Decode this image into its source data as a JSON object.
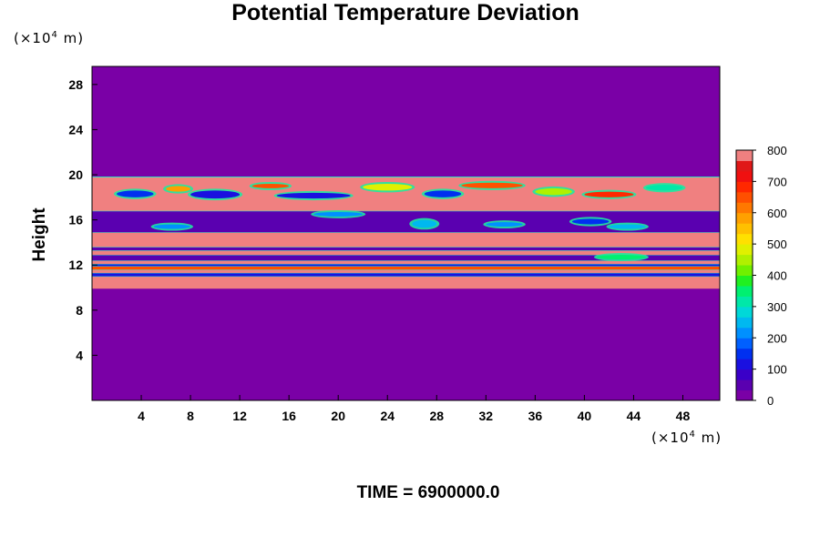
{
  "chart_data": {
    "type": "heatmap",
    "title": "Potential Temperature Deviation",
    "ylabel": "Height",
    "xunit": "(×10⁴ m)",
    "yunit": "(×10⁴ m)",
    "unit_prefix": "(×10",
    "unit_exp": "4",
    "unit_suffix": " m)",
    "x_ticks": [
      4,
      8,
      12,
      16,
      20,
      24,
      28,
      32,
      36,
      40,
      44,
      48
    ],
    "y_ticks": [
      4,
      8,
      12,
      16,
      20,
      24,
      28
    ],
    "xlim": [
      0,
      51
    ],
    "ylim": [
      0,
      29.6
    ],
    "clim": [
      0,
      800
    ],
    "colorbar_ticks": [
      0,
      100,
      200,
      300,
      400,
      500,
      600,
      700,
      800
    ],
    "colorbar_colors": [
      "#7a00a6",
      "#5a00b0",
      "#3a00c8",
      "#1a10e0",
      "#0030f0",
      "#0060ff",
      "#0090ff",
      "#00b8f0",
      "#00d8d8",
      "#00e8a8",
      "#00f070",
      "#20f020",
      "#70f000",
      "#b0f000",
      "#e0f000",
      "#ffe000",
      "#ffc000",
      "#ffa000",
      "#ff7800",
      "#ff5000",
      "#ff2800",
      "#f01010",
      "#e01818",
      "#f08080"
    ],
    "background_value": 0,
    "layers": [
      {
        "y0": 9.9,
        "y1": 11.0,
        "value": 800
      },
      {
        "y0": 11.0,
        "y1": 11.3,
        "value": 100
      },
      {
        "y0": 11.3,
        "y1": 11.6,
        "value": 800
      },
      {
        "y0": 11.6,
        "y1": 11.9,
        "value": 650
      },
      {
        "y0": 11.9,
        "y1": 12.1,
        "value": 100
      },
      {
        "y0": 12.1,
        "y1": 12.4,
        "value": 800
      },
      {
        "y0": 12.4,
        "y1": 12.9,
        "value": 50
      },
      {
        "y0": 12.9,
        "y1": 13.3,
        "value": 800
      },
      {
        "y0": 13.3,
        "y1": 13.6,
        "value": 50
      },
      {
        "y0": 13.6,
        "y1": 14.9,
        "value": 800
      },
      {
        "y0": 14.9,
        "y1": 16.8,
        "value": 50
      },
      {
        "y0": 16.8,
        "y1": 19.8,
        "value": 800
      }
    ],
    "patches": [
      {
        "x": 2,
        "y": 18.0,
        "w": 3,
        "h": 0.6,
        "value": 150
      },
      {
        "x": 6,
        "y": 18.5,
        "w": 2,
        "h": 0.5,
        "value": 600
      },
      {
        "x": 8,
        "y": 17.9,
        "w": 4,
        "h": 0.7,
        "value": 100
      },
      {
        "x": 13,
        "y": 18.8,
        "w": 3,
        "h": 0.4,
        "value": 650
      },
      {
        "x": 15,
        "y": 17.9,
        "w": 6,
        "h": 0.5,
        "value": 100
      },
      {
        "x": 22,
        "y": 18.6,
        "w": 4,
        "h": 0.6,
        "value": 500
      },
      {
        "x": 27,
        "y": 18.0,
        "w": 3,
        "h": 0.6,
        "value": 150
      },
      {
        "x": 30,
        "y": 18.8,
        "w": 5,
        "h": 0.5,
        "value": 650
      },
      {
        "x": 36,
        "y": 18.2,
        "w": 3,
        "h": 0.6,
        "value": 450
      },
      {
        "x": 40,
        "y": 18.0,
        "w": 4,
        "h": 0.5,
        "value": 700
      },
      {
        "x": 45,
        "y": 18.6,
        "w": 3,
        "h": 0.5,
        "value": 300
      },
      {
        "x": 18,
        "y": 16.3,
        "w": 4,
        "h": 0.4,
        "value": 200
      },
      {
        "x": 26,
        "y": 15.3,
        "w": 2,
        "h": 0.7,
        "value": 250
      },
      {
        "x": 39,
        "y": 15.6,
        "w": 3,
        "h": 0.5,
        "value": 150
      },
      {
        "x": 42,
        "y": 15.2,
        "w": 3,
        "h": 0.4,
        "value": 250
      },
      {
        "x": 5,
        "y": 15.2,
        "w": 3,
        "h": 0.4,
        "value": 200
      },
      {
        "x": 32,
        "y": 15.4,
        "w": 3,
        "h": 0.4,
        "value": 200
      },
      {
        "x": 41,
        "y": 12.5,
        "w": 4,
        "h": 0.4,
        "value": 350
      }
    ],
    "colorbar_label_prefix": ""
  },
  "time_label": "TIME = 6900000.0"
}
